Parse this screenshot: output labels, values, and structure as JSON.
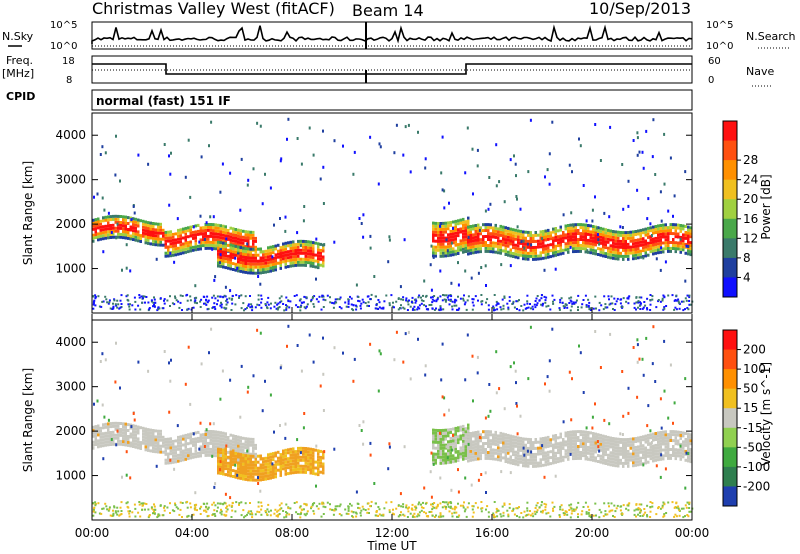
{
  "header": {
    "title": "Christmas Valley West (fitACF)",
    "beam": "Beam 14",
    "date": "10/Sep/2013"
  },
  "top_panels": {
    "nsky_label": "N.Sky",
    "nsky_ticks": [
      "10^5",
      "10^0"
    ],
    "nsearch_label": "N.Search",
    "nsearch_ticks": [
      "10^5",
      "10^0"
    ],
    "freq_label": "Freq.",
    "freq_unit": "[MHz]",
    "freq_ticks": [
      "18",
      "8"
    ],
    "nave_label": "Nave",
    "nave_ticks": [
      "60",
      "0"
    ],
    "cpid_label": "CPID",
    "cpid_value": "normal (fast) 151 IF"
  },
  "chart_data": [
    {
      "type": "heatmap",
      "name": "power",
      "ylabel": "Slant Range [km]",
      "ylim": [
        0,
        4500
      ],
      "yticks": [
        "1000",
        "2000",
        "3000",
        "4000"
      ],
      "colorbar_label": "Power [dB]",
      "colorbar_ticks": [
        "4",
        "8",
        "12",
        "16",
        "20",
        "24",
        "28"
      ],
      "colorbar_colors": [
        "#1010ff",
        "#1f3f9f",
        "#3a7a6a",
        "#4aa84a",
        "#a0d040",
        "#f0c020",
        "#ff9000",
        "#ff5010",
        "#ff1010"
      ],
      "regions": [
        {
          "t_start": 0.0,
          "t_end": 2.9,
          "r_center": 1900,
          "r_half": 250,
          "level": "strong"
        },
        {
          "t_start": 2.9,
          "t_end": 6.5,
          "r_center": 1700,
          "r_half": 300,
          "level": "strong"
        },
        {
          "t_start": 5.0,
          "t_end": 9.2,
          "r_center": 1300,
          "r_half": 280,
          "level": "medium"
        },
        {
          "t_start": 13.6,
          "t_end": 15.0,
          "r_center": 1800,
          "r_half": 400,
          "level": "medium"
        },
        {
          "t_start": 15.0,
          "t_end": 24.0,
          "r_center": 1650,
          "r_half": 320,
          "level": "strong"
        }
      ]
    },
    {
      "type": "heatmap",
      "name": "velocity",
      "xlabel": "Time UT",
      "ylabel": "Slant Range [km]",
      "ylim": [
        0,
        4500
      ],
      "yticks": [
        "1000",
        "2000",
        "3000",
        "4000"
      ],
      "xticks": [
        "00:00",
        "04:00",
        "08:00",
        "12:00",
        "16:00",
        "20:00",
        "00:00"
      ],
      "colorbar_label": "Velocity [m s^-1]",
      "colorbar_ticks": [
        "200",
        "100",
        "50",
        "15",
        "-15",
        "-50",
        "-100",
        "-200"
      ],
      "colorbar_colors": [
        "#1f3faf",
        "#2f7f4f",
        "#3faa3f",
        "#90d050",
        "#c8c8c0",
        "#f0c020",
        "#ff9000",
        "#ff5010",
        "#ff1010"
      ]
    }
  ]
}
